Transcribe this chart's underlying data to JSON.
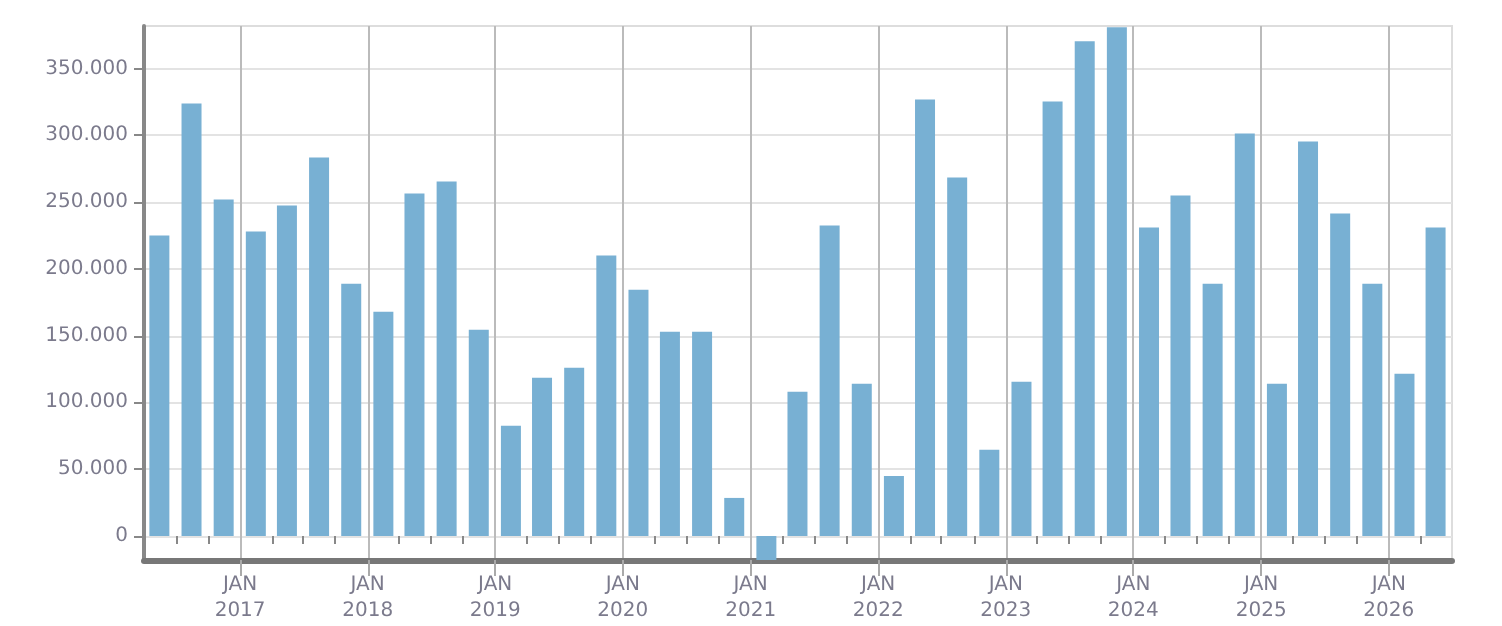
{
  "chart_data": {
    "type": "bar",
    "color": "#78b0d3",
    "grid": true,
    "x": [
      "2016-05-15",
      "2016-08-15",
      "2016-11-15",
      "2017-02-15",
      "2017-05-15",
      "2017-08-15",
      "2017-11-15",
      "2018-02-15",
      "2018-05-15",
      "2018-08-15",
      "2018-11-15",
      "2019-02-15",
      "2019-05-15",
      "2019-08-15",
      "2019-11-15",
      "2020-02-15",
      "2020-05-15",
      "2020-08-15",
      "2020-11-15",
      "2021-02-15",
      "2021-05-15",
      "2021-08-15",
      "2021-11-15",
      "2022-02-15",
      "2022-05-15",
      "2022-08-15",
      "2022-11-15",
      "2023-02-15",
      "2023-05-15",
      "2023-08-15",
      "2023-11-15",
      "2024-02-15",
      "2024-05-15",
      "2024-08-15",
      "2024-11-15",
      "2025-02-15",
      "2025-05-15",
      "2025-08-15",
      "2025-11-15",
      "2026-02-15",
      "2026-05-15"
    ],
    "values": [
      225000,
      324000,
      252000,
      228000,
      247500,
      283500,
      189000,
      168000,
      256500,
      265500,
      154500,
      82500,
      118500,
      126000,
      210000,
      184500,
      153000,
      153000,
      28500,
      -18000,
      108000,
      232500,
      114000,
      45000,
      327000,
      268500,
      64500,
      115500,
      325500,
      370500,
      381000,
      231000,
      255000,
      189000,
      301500,
      114000,
      295500,
      241500,
      189000,
      121500,
      231000
    ],
    "ylim": [
      -18000,
      382000
    ],
    "yticks": [
      0,
      {
        "value": 50000,
        "label": "50.000"
      },
      {
        "value": 100000,
        "label": "100.000"
      },
      {
        "value": 150000,
        "label": "150.000"
      },
      {
        "value": 200000,
        "label": "200.000"
      },
      {
        "value": 250000,
        "label": "250.000"
      },
      {
        "value": 300000,
        "label": "300.000"
      },
      {
        "value": 350000,
        "label": "350.000"
      }
    ],
    "xlim": [
      "2016-04-01",
      "2026-07-01"
    ],
    "xticks": [
      {
        "value": "2016-07-01",
        "label": null
      },
      {
        "value": "2016-10-01",
        "label": null
      },
      {
        "value": "2017-01-01",
        "label": "JAN\n2017"
      },
      {
        "value": "2017-04-01",
        "label": null
      },
      {
        "value": "2017-07-01",
        "label": null
      },
      {
        "value": "2017-10-01",
        "label": null
      },
      {
        "value": "2018-01-01",
        "label": "JAN\n2018"
      },
      {
        "value": "2018-04-01",
        "label": null
      },
      {
        "value": "2018-07-01",
        "label": null
      },
      {
        "value": "2018-10-01",
        "label": null
      },
      {
        "value": "2019-01-01",
        "label": "JAN\n2019"
      },
      {
        "value": "2019-04-01",
        "label": null
      },
      {
        "value": "2019-07-01",
        "label": null
      },
      {
        "value": "2019-10-01",
        "label": null
      },
      {
        "value": "2020-01-01",
        "label": "JAN\n2020"
      },
      {
        "value": "2020-04-01",
        "label": null
      },
      {
        "value": "2020-07-01",
        "label": null
      },
      {
        "value": "2020-10-01",
        "label": null
      },
      {
        "value": "2021-01-01",
        "label": "JAN\n2021"
      },
      {
        "value": "2021-04-01",
        "label": null
      },
      {
        "value": "2021-07-01",
        "label": null
      },
      {
        "value": "2021-10-01",
        "label": null
      },
      {
        "value": "2022-01-01",
        "label": "JAN\n2022"
      },
      {
        "value": "2022-04-01",
        "label": null
      },
      {
        "value": "2022-07-01",
        "label": null
      },
      {
        "value": "2022-10-01",
        "label": null
      },
      {
        "value": "2023-01-01",
        "label": "JAN\n2023"
      },
      {
        "value": "2023-04-01",
        "label": null
      },
      {
        "value": "2023-07-01",
        "label": null
      },
      {
        "value": "2023-10-01",
        "label": null
      },
      {
        "value": "2024-01-01",
        "label": "JAN\n2024"
      },
      {
        "value": "2024-04-01",
        "label": null
      },
      {
        "value": "2024-07-01",
        "label": null
      },
      {
        "value": "2024-10-01",
        "label": null
      },
      {
        "value": "2025-01-01",
        "label": "JAN\n2025"
      },
      {
        "value": "2025-04-01",
        "label": null
      },
      {
        "value": "2025-07-01",
        "label": null
      },
      {
        "value": "2025-10-01",
        "label": null
      },
      {
        "value": "2026-01-01",
        "label": "JAN\n2026"
      },
      {
        "value": "2026-04-01",
        "label": null
      }
    ]
  }
}
